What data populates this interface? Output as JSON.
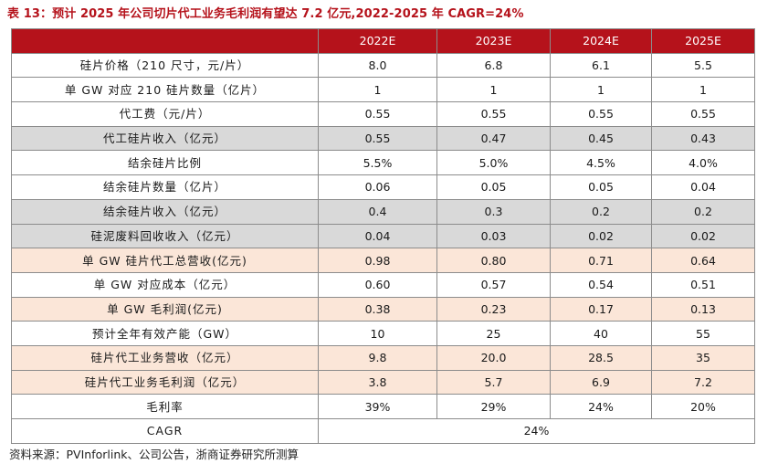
{
  "title": "表 13：预计 2025 年公司切片代工业务毛利润有望达 7.2 亿元,2022-2025 年 CAGR=24%",
  "header": [
    "",
    "2022E",
    "2023E",
    "2024E",
    "2025E"
  ],
  "rows": [
    {
      "label": "硅片价格（210 尺寸，元/片）",
      "values": [
        "8.0",
        "6.8",
        "6.1",
        "5.5"
      ],
      "style": "plain"
    },
    {
      "label": "单 GW 对应 210 硅片数量（亿片）",
      "values": [
        "1",
        "1",
        "1",
        "1"
      ],
      "style": "plain"
    },
    {
      "label": "代工费（元/片）",
      "values": [
        "0.55",
        "0.55",
        "0.55",
        "0.55"
      ],
      "style": "plain"
    },
    {
      "label": "代工硅片收入（亿元）",
      "values": [
        "0.55",
        "0.47",
        "0.45",
        "0.43"
      ],
      "style": "gray"
    },
    {
      "label": "结余硅片比例",
      "values": [
        "5.5%",
        "5.0%",
        "4.5%",
        "4.0%"
      ],
      "style": "plain"
    },
    {
      "label": "结余硅片数量（亿片）",
      "values": [
        "0.06",
        "0.05",
        "0.05",
        "0.04"
      ],
      "style": "plain"
    },
    {
      "label": "结余硅片收入（亿元）",
      "values": [
        "0.4",
        "0.3",
        "0.2",
        "0.2"
      ],
      "style": "gray"
    },
    {
      "label": "硅泥废料回收收入（亿元）",
      "values": [
        "0.04",
        "0.03",
        "0.02",
        "0.02"
      ],
      "style": "gray"
    },
    {
      "label": "单 GW 硅片代工总营收(亿元)",
      "values": [
        "0.98",
        "0.80",
        "0.71",
        "0.64"
      ],
      "style": "peach"
    },
    {
      "label": "单 GW 对应成本（亿元）",
      "values": [
        "0.60",
        "0.57",
        "0.54",
        "0.51"
      ],
      "style": "plain"
    },
    {
      "label": "单 GW 毛利润(亿元)",
      "values": [
        "0.38",
        "0.23",
        "0.17",
        "0.13"
      ],
      "style": "peach"
    },
    {
      "label": "预计全年有效产能（GW）",
      "values": [
        "10",
        "25",
        "40",
        "55"
      ],
      "style": "plain"
    },
    {
      "label": "硅片代工业务营收（亿元）",
      "values": [
        "9.8",
        "20.0",
        "28.5",
        "35"
      ],
      "style": "peach"
    },
    {
      "label": "硅片代工业务毛利润（亿元）",
      "values": [
        "3.8",
        "5.7",
        "6.9",
        "7.2"
      ],
      "style": "peach"
    },
    {
      "label": "毛利率",
      "values": [
        "39%",
        "29%",
        "24%",
        "20%"
      ],
      "style": "plain"
    }
  ],
  "cagr": {
    "label": "CAGR",
    "value": "24%"
  },
  "source": "资料来源：PVInforlink、公司公告，浙商证券研究所测算",
  "colors": {
    "header_bg": "#b5121b",
    "title": "#b5121b",
    "gray_row": "#d9d9d9",
    "peach_row": "#fbe6d8"
  }
}
